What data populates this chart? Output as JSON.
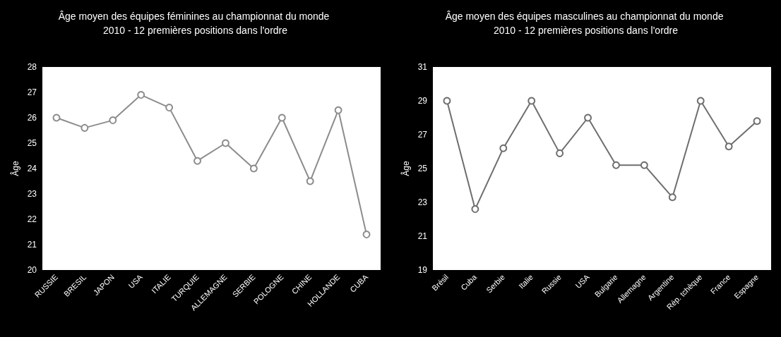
{
  "chart_data": [
    {
      "type": "line",
      "title": "Âge moyen des équipes féminines au championnat du monde 2010 - 12 premières positions dans l'ordre",
      "ylabel": "Âge",
      "categories": [
        "RUSSIE",
        "BRESIL",
        "JAPON",
        "USA",
        "ITALIE",
        "TURQUIE",
        "ALLEMAGNE",
        "SERBIE",
        "POLOGNE",
        "CHINE",
        "HOLLANDE",
        "CUBA"
      ],
      "series": [
        {
          "color": "#8c8c8c",
          "values": [
            26.0,
            25.6,
            25.9,
            26.9,
            26.4,
            24.3,
            25.0,
            24.0,
            26.0,
            23.5,
            26.3,
            21.4
          ]
        }
      ],
      "ylim": [
        20,
        28
      ],
      "yticks": [
        20,
        21,
        22,
        23,
        24,
        25,
        26,
        27,
        28
      ],
      "grid": false,
      "marker": "circle",
      "line_style": "solid"
    },
    {
      "type": "line",
      "title": "Âge moyen des équipes masculines au championnat du monde 2010 - 12 premières positions dans l'ordre",
      "ylabel": "Âge",
      "categories": [
        "Brésil",
        "Cuba",
        "Serbie",
        "Italie",
        "Russie",
        "USA",
        "Bulgarie",
        "Allemagne",
        "Argentine",
        "Rép. tchèque",
        "France",
        "Espagne"
      ],
      "series": [
        {
          "color": "#6e6e6e",
          "values": [
            29.0,
            22.6,
            26.2,
            29.0,
            25.9,
            28.0,
            25.2,
            25.2,
            23.3,
            29.0,
            26.3,
            27.8
          ]
        }
      ],
      "ylim": [
        19,
        31
      ],
      "yticks": [
        19,
        21,
        23,
        25,
        27,
        29,
        31
      ],
      "grid": false,
      "marker": "circle",
      "line_style": "solid"
    }
  ]
}
